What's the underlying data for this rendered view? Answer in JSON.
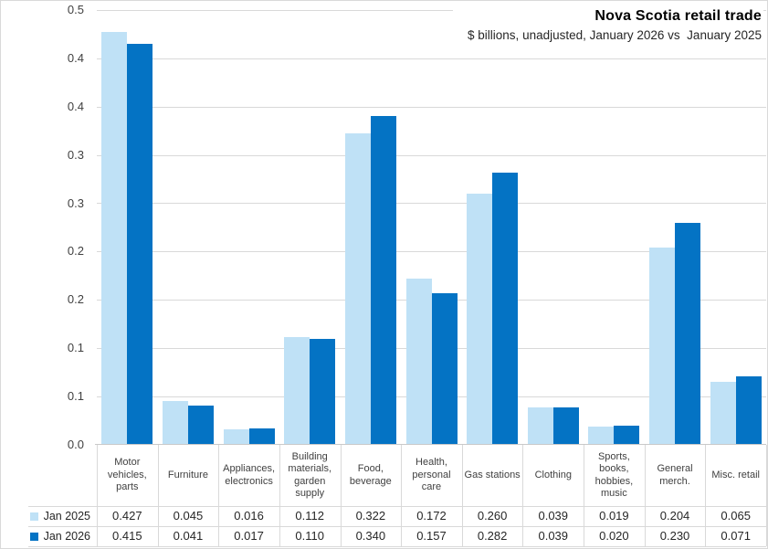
{
  "title": "Nova Scotia retail trade",
  "subtitle": "$ billions, unadjusted, January 2026 vs  January 2025",
  "chart_data": {
    "type": "bar",
    "categories": [
      "Motor vehicles, parts",
      "Furniture",
      "Appliances, electronics",
      "Building materials, garden supply",
      "Food, beverage",
      "Health, personal care",
      "Gas stations",
      "Clothing",
      "Sports, books, hobbies, music",
      "General merch.",
      "Misc. retail"
    ],
    "series": [
      {
        "name": "Jan 2025",
        "color": "#BFE1F6",
        "values": [
          0.427,
          0.045,
          0.016,
          0.112,
          0.322,
          0.172,
          0.26,
          0.039,
          0.019,
          0.204,
          0.065
        ]
      },
      {
        "name": "Jan 2026",
        "color": "#0473C4",
        "values": [
          0.415,
          0.041,
          0.017,
          0.11,
          0.34,
          0.157,
          0.282,
          0.039,
          0.02,
          0.23,
          0.071
        ]
      }
    ],
    "ylim": [
      0,
      0.45
    ],
    "ytick_interval": 0.05,
    "ytick_labels_top_to_bottom": [
      "0.5",
      "0.4",
      "0.4",
      "0.3",
      "0.3",
      "0.2",
      "0.2",
      "0.1",
      "0.1",
      "0.0"
    ],
    "grid": true,
    "legend_position": "data-table-left-keys",
    "value_format_decimals": 3,
    "has_data_table": true
  },
  "colors": {
    "gridline": "#D9D9D9",
    "axis_line": "#C9C9C9",
    "axis_text": "#404040",
    "value_text": "#262626",
    "background": "#FFFFFF",
    "border": "#D9D9D9"
  }
}
